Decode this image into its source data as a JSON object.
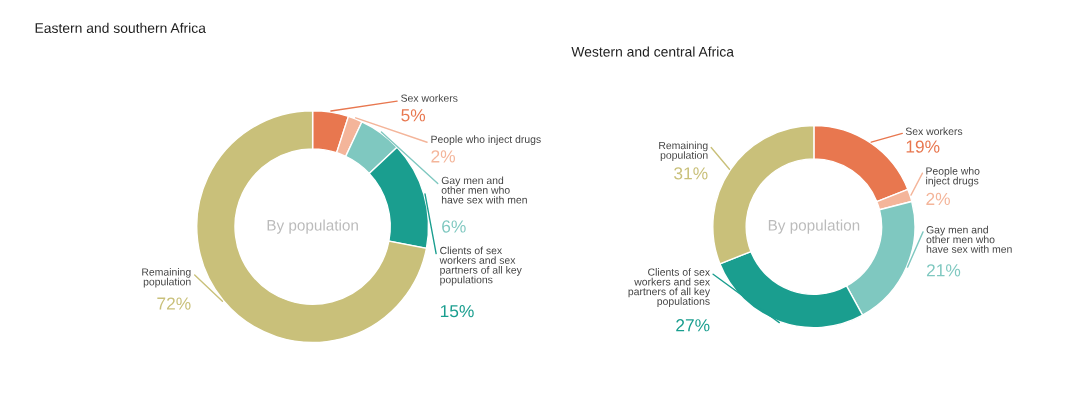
{
  "chart_data": [
    {
      "type": "donut",
      "title": "Eastern and southern Africa",
      "categories": [
        "Sex workers",
        "People who inject drugs",
        "Gay men and\nother men who\nhave sex with men",
        "Clients of sex\nworkers and sex\npartners of all key\npopulations",
        "Remaining\npopulation"
      ],
      "values": [
        5,
        2,
        6,
        15,
        72
      ],
      "value_labels": [
        "5%",
        "2%",
        "6%",
        "15%",
        "72%"
      ],
      "colors": [
        "#e8774f",
        "#f4b59a",
        "#7fc8c0",
        "#1a9e8f",
        "#c9c07a"
      ],
      "annotations": [
        "By population"
      ]
    },
    {
      "type": "donut",
      "title": "Western and central Africa",
      "categories": [
        "Sex workers",
        "People who\ninject drugs",
        "Gay men and\nother men who\nhave sex with men",
        "Clients of sex\nworkers and sex\npartners of all key\npopulations",
        "Remaining\npopulation"
      ],
      "values": [
        19,
        2,
        21,
        27,
        31
      ],
      "value_labels": [
        "19%",
        "2%",
        "21%",
        "27%",
        "31%"
      ],
      "colors": [
        "#e8774f",
        "#f4b59a",
        "#7fc8c0",
        "#1a9e8f",
        "#c9c07a"
      ],
      "annotations": [
        "By population"
      ]
    }
  ]
}
